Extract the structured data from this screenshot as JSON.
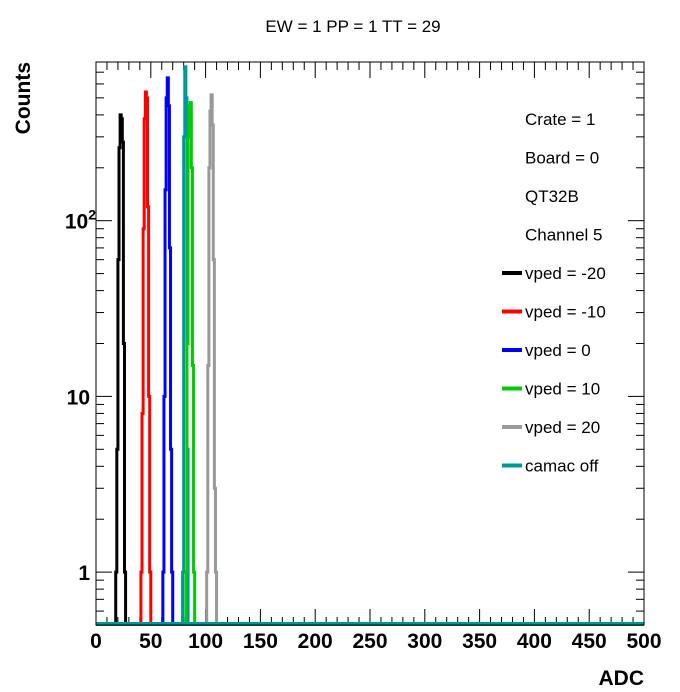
{
  "chart_data": {
    "type": "histogram",
    "title": "EW = 1 PP = 1 TT = 29",
    "xlabel": "ADC",
    "ylabel": "Counts",
    "xlim": [
      0,
      500
    ],
    "ylim": [
      0.5,
      800
    ],
    "yscale": "log",
    "x_ticks": [
      0,
      50,
      100,
      150,
      200,
      250,
      300,
      350,
      400,
      450,
      500
    ],
    "y_ticks": [
      {
        "value": 1,
        "label": "1"
      },
      {
        "value": 10,
        "label": "10"
      },
      {
        "value": 100,
        "label": "10",
        "sup": "2"
      }
    ],
    "legend_position": "top-right",
    "legend_text": [
      "Crate = 1",
      "Board = 0",
      "QT32B",
      "Channel 5"
    ],
    "series": [
      {
        "name": "vped = -20",
        "color": "#000000",
        "points": [
          [
            18,
            1
          ],
          [
            19,
            5
          ],
          [
            20,
            60
          ],
          [
            21,
            260
          ],
          [
            22,
            400
          ],
          [
            23,
            380
          ],
          [
            24,
            280
          ],
          [
            25,
            20
          ],
          [
            26,
            1
          ]
        ]
      },
      {
        "name": "vped = -10",
        "color": "#ff0000",
        "points": [
          [
            41,
            1
          ],
          [
            42,
            8
          ],
          [
            43,
            90
          ],
          [
            44,
            380
          ],
          [
            45,
            540
          ],
          [
            46,
            500
          ],
          [
            47,
            120
          ],
          [
            48,
            10
          ],
          [
            49,
            1
          ]
        ]
      },
      {
        "name": "vped = 0",
        "color": "#0000ff",
        "points": [
          [
            61,
            1
          ],
          [
            62,
            10
          ],
          [
            63,
            150
          ],
          [
            64,
            500
          ],
          [
            65,
            650
          ],
          [
            66,
            450
          ],
          [
            67,
            70
          ],
          [
            68,
            5
          ],
          [
            69,
            1
          ]
        ]
      },
      {
        "name": "vped = 10",
        "color": "#00cc00",
        "points": [
          [
            82,
            1
          ],
          [
            83,
            20
          ],
          [
            84,
            300
          ],
          [
            85,
            450
          ],
          [
            86,
            470
          ],
          [
            87,
            200
          ],
          [
            88,
            15
          ],
          [
            89,
            1
          ]
        ]
      },
      {
        "name": "vped = 20",
        "color": "#999999",
        "points": [
          [
            101,
            1
          ],
          [
            102,
            15
          ],
          [
            103,
            200
          ],
          [
            104,
            420
          ],
          [
            105,
            520
          ],
          [
            106,
            350
          ],
          [
            107,
            60
          ],
          [
            108,
            3
          ],
          [
            109,
            1
          ]
        ]
      },
      {
        "name": "camac off",
        "color": "#009999",
        "points": [
          [
            79,
            1
          ],
          [
            80,
            300
          ],
          [
            81,
            750
          ],
          [
            82,
            500
          ],
          [
            83,
            5
          ]
        ]
      }
    ]
  }
}
